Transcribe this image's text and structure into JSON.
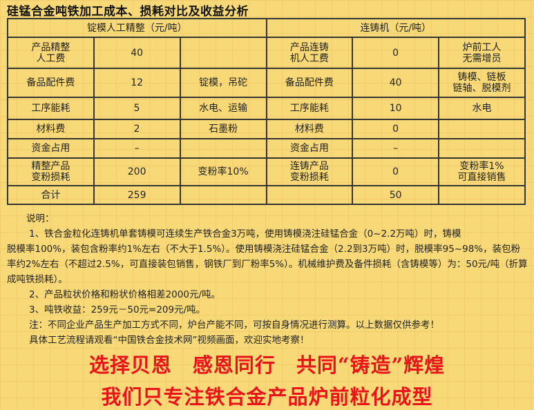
{
  "title": "硅锰合金吨铁加工成本、损耗对比及收益分析",
  "table": {
    "left_header": "锭模人工精整（元/吨）",
    "right_header": "连铸机（元/吨）",
    "rows": [
      {
        "l_item": "产品精整\n人工费",
        "l_val": "40",
        "l_note": "",
        "r_item": "产品连铸\n机人工费",
        "r_val": "0",
        "r_note": "炉前工人\n无需增员"
      },
      {
        "l_item": "备品配件费",
        "l_val": "12",
        "l_note": "锭模，吊砣",
        "r_item": "备品配件费",
        "r_val": "40",
        "r_note": "铸模、链板\n链轴、脱模剂"
      },
      {
        "l_item": "工序能耗",
        "l_val": "5",
        "l_note": "水电、运输",
        "r_item": "工序能耗",
        "r_val": "10",
        "r_note": "水电"
      },
      {
        "l_item": "材料费",
        "l_val": "2",
        "l_note": "石墨粉",
        "r_item": "材料费",
        "r_val": "0",
        "r_note": ""
      },
      {
        "l_item": "资金占用",
        "l_val": "–",
        "l_note": "",
        "r_item": "资金占用",
        "r_val": "–",
        "r_note": ""
      },
      {
        "l_item": "精整产品\n变粉损耗",
        "l_val": "200",
        "l_note": "变粉率10%",
        "r_item": "连铸产品\n变粉损耗",
        "r_val": "0",
        "r_note": "变粉率1%\n可直接销售"
      },
      {
        "l_item": "合计",
        "l_val": "259",
        "l_note": "",
        "r_item": "",
        "r_val": "50",
        "r_note": ""
      }
    ]
  },
  "notes": {
    "heading": "说明：",
    "p1_first": "1、铁合金粒化连铸机单套铸模可连续生产铁合金3万吨，使用铸模浇注硅锰合金（0~2.2万吨）时，铸模",
    "p1_rest": "脱模率100%，装包含粉率约1%左右（不大于1.5%）。使用铸模浇注硅锰合金（2.2到3万吨）时，脱模率95~98%，装包粉率约2%左右（不超过2.5%，可直接装包销售，钢铁厂到厂粉率5%）。机械维护费及备件损耗（含铸模等）为：50元/吨（折算成吨铁损耗）。",
    "p2": "2、产品粒状价格和粉状价格相差2000元/吨。",
    "p3": "3、吨铁收益：259元－50元=209元/吨。",
    "p4": "注：不同企业产品生产加工方式不同，炉台产能不同，可按自身情况进行测算。以上数据仅供参考！",
    "p5": "具体工艺流程请观看“中国铁合金技术网”视频画面，欢迎实地考察！"
  },
  "slogans": [
    "选择贝恩　感恩同行　共同“铸造”辉煌",
    "我们只专注铁合金产品炉前粒化成型"
  ],
  "colors": {
    "background": "#f8d978",
    "slogan": "#e8141a"
  }
}
